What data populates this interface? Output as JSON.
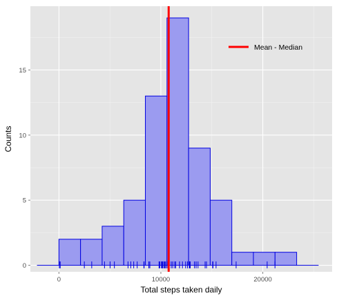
{
  "chart_data": {
    "type": "bar",
    "xlabel": "Total steps taken daily",
    "ylabel": "Counts",
    "xlim": [
      -2800,
      26800
    ],
    "ylim": [
      -0.5,
      19.9
    ],
    "x_ticks": [
      0,
      10000,
      20000
    ],
    "x_tick_labels": [
      "0",
      "10000",
      "20000"
    ],
    "y_ticks": [
      0,
      5,
      10,
      15
    ],
    "y_tick_labels": [
      "0",
      "5",
      "10",
      "15"
    ],
    "grid": true,
    "bin_width": 2120,
    "bins": [
      {
        "start": -2120,
        "count": 0
      },
      {
        "start": 0,
        "count": 2
      },
      {
        "start": 2120,
        "count": 2
      },
      {
        "start": 4240,
        "count": 3
      },
      {
        "start": 6360,
        "count": 5
      },
      {
        "start": 8480,
        "count": 13
      },
      {
        "start": 10600,
        "count": 19
      },
      {
        "start": 12720,
        "count": 9
      },
      {
        "start": 14840,
        "count": 5
      },
      {
        "start": 16960,
        "count": 1
      },
      {
        "start": 19080,
        "count": 1
      },
      {
        "start": 21200,
        "count": 1
      },
      {
        "start": 23320,
        "count": 0
      }
    ],
    "bar_fill": "#9b9bf0",
    "bar_stroke": "#0000e0",
    "mean_median_line": {
      "value": 10766,
      "color": "#ff0000"
    },
    "rug": [
      41,
      126,
      2492,
      3219,
      4472,
      5018,
      5441,
      6778,
      7047,
      7336,
      7678,
      8334,
      8355,
      8821,
      8918,
      9819,
      9900,
      10056,
      10119,
      10139,
      10183,
      10304,
      10395,
      10439,
      10571,
      10600,
      10765,
      11015,
      11162,
      11352,
      11458,
      11829,
      11834,
      12116,
      12426,
      12608,
      12787,
      12811,
      12883,
      13294,
      13452,
      13460,
      13646,
      14339,
      14478,
      15084,
      15098,
      15110,
      15414,
      17382,
      20427,
      21194
    ],
    "rug_color": "#0000e0",
    "legend": {
      "label": "Mean - Median",
      "position": "top-right"
    }
  }
}
